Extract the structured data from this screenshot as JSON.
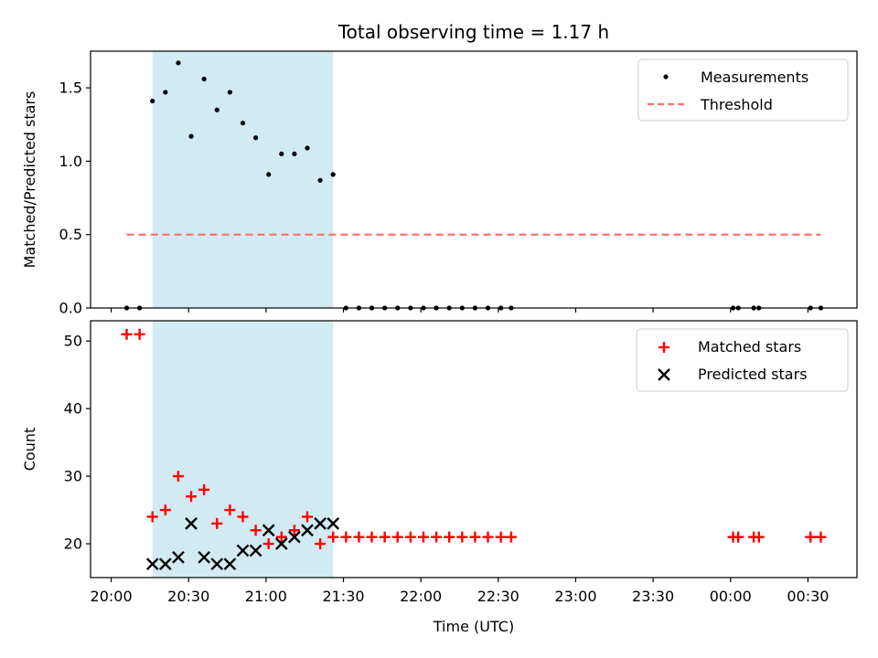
{
  "chart_data": {
    "title": "Total observing time = 1.17 h",
    "xlabel": "Time (UTC)",
    "x_tick_labels": [
      "20:00",
      "20:30",
      "21:00",
      "21:30",
      "22:00",
      "22:30",
      "23:00",
      "23:30",
      "00:00",
      "00:30"
    ],
    "x_tick_minutes": [
      0,
      30,
      60,
      90,
      120,
      150,
      180,
      210,
      240,
      270
    ],
    "xlim_minutes": [
      -8,
      289
    ],
    "shaded_interval_minutes": [
      16,
      86
    ],
    "shade_color": "#add8e6",
    "panels": [
      {
        "type": "scatter",
        "ylabel": "Matched/Predicted stars",
        "ylim": [
          0,
          1.75
        ],
        "y_ticks": [
          0.0,
          0.5,
          1.0,
          1.5
        ],
        "y_tick_labels": [
          "0.0",
          "0.5",
          "1.0",
          "1.5"
        ],
        "legend": {
          "placement": "top-right",
          "entries": [
            "Measurements",
            "Threshold"
          ]
        },
        "series": [
          {
            "name": "Measurements",
            "marker": "dot",
            "color": "#000000",
            "x": [
              6,
              11,
              16,
              21,
              26,
              31,
              36,
              41,
              46,
              51,
              56,
              61,
              66,
              71,
              76,
              81,
              86,
              91,
              96,
              101,
              106,
              111,
              116,
              121,
              126,
              131,
              136,
              141,
              146,
              151,
              155,
              241,
              243,
              249,
              251,
              271,
              275
            ],
            "y": [
              0,
              0,
              1.41,
              1.47,
              1.67,
              1.17,
              1.56,
              1.35,
              1.47,
              1.26,
              1.16,
              0.91,
              1.05,
              1.05,
              1.09,
              0.87,
              0.91,
              0,
              0,
              0,
              0,
              0,
              0,
              0,
              0,
              0,
              0,
              0,
              0,
              0,
              0,
              0,
              0,
              0,
              0,
              0,
              0
            ]
          },
          {
            "name": "Threshold",
            "style": "dashed",
            "color": "#ff7070",
            "x": [
              6,
              275
            ],
            "y": [
              0.5,
              0.5
            ]
          }
        ]
      },
      {
        "type": "scatter",
        "ylabel": "Count",
        "ylim": [
          15,
          53
        ],
        "y_ticks": [
          20,
          30,
          40,
          50
        ],
        "y_tick_labels": [
          "20",
          "30",
          "40",
          "50"
        ],
        "legend": {
          "placement": "top-right",
          "entries": [
            "Matched stars",
            "Predicted stars"
          ]
        },
        "series": [
          {
            "name": "Matched stars",
            "marker": "plus",
            "color": "#ff0000",
            "x": [
              6,
              11,
              16,
              21,
              26,
              31,
              36,
              41,
              46,
              51,
              56,
              61,
              66,
              71,
              76,
              81,
              86,
              91,
              96,
              101,
              106,
              111,
              116,
              121,
              126,
              131,
              136,
              141,
              146,
              151,
              155,
              241,
              243,
              249,
              251,
              271,
              275
            ],
            "y": [
              51,
              51,
              24,
              25,
              30,
              27,
              28,
              23,
              25,
              24,
              22,
              20,
              21,
              22,
              24,
              20,
              21,
              21,
              21,
              21,
              21,
              21,
              21,
              21,
              21,
              21,
              21,
              21,
              21,
              21,
              21,
              21,
              21,
              21,
              21,
              21,
              21
            ]
          },
          {
            "name": "Predicted stars",
            "marker": "x",
            "color": "#000000",
            "x": [
              16,
              21,
              26,
              31,
              36,
              41,
              46,
              51,
              56,
              61,
              66,
              71,
              76,
              81,
              86
            ],
            "y": [
              17,
              17,
              18,
              23,
              18,
              17,
              17,
              19,
              19,
              22,
              20,
              21,
              22,
              23,
              23
            ]
          }
        ]
      }
    ]
  }
}
